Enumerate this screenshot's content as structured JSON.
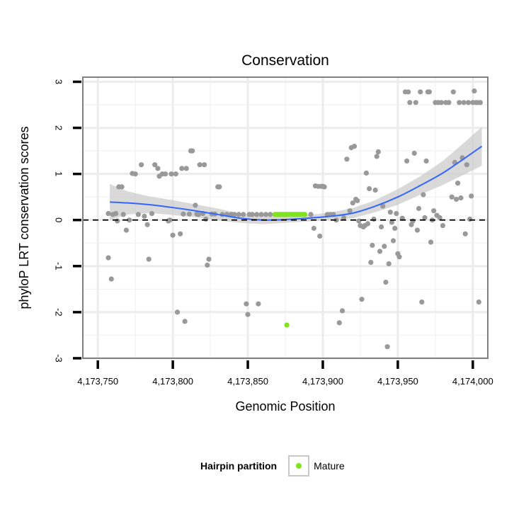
{
  "chart_data": {
    "type": "scatter",
    "title": "Conservation",
    "xlabel": "Genomic Position",
    "ylabel": "phyloP LRT conservation scores",
    "xlim": [
      4173740,
      4174010
    ],
    "ylim": [
      -3,
      3.1
    ],
    "x_ticks": [
      4173750,
      4173800,
      4173850,
      4173900,
      4173950,
      4174000
    ],
    "x_tick_labels": [
      "4,173,750",
      "4,173,800",
      "4,173,850",
      "4,173,900",
      "4,173,950",
      "4,174,000"
    ],
    "y_ticks": [
      -3,
      -2,
      -1,
      0,
      1,
      2,
      3
    ],
    "y_tick_labels": [
      "-3",
      "-2",
      "-1",
      "0",
      "1",
      "2",
      "3"
    ],
    "reference_line": {
      "y": 0,
      "style": "dashed"
    },
    "grid": true,
    "legend": {
      "title": "Hairpin partition",
      "position": "bottom",
      "entries": [
        {
          "label": "Mature",
          "color": "#7fe31e"
        }
      ]
    },
    "colors": {
      "point": "#999999",
      "mature": "#7fe31e",
      "smooth": "#3366ff",
      "band": "#cccccc",
      "panel_border": "#808080",
      "grid": "#ececec"
    },
    "smooth_curve": {
      "x": [
        4173758,
        4173770,
        4173785,
        4173800,
        4173815,
        4173830,
        4173845,
        4173860,
        4173875,
        4173890,
        4173905,
        4173920,
        4173935,
        4173950,
        4173965,
        4173980,
        4173995,
        4174006
      ],
      "y": [
        0.39,
        0.37,
        0.33,
        0.27,
        0.2,
        0.12,
        0.04,
        0.0,
        0.01,
        0.04,
        0.08,
        0.15,
        0.3,
        0.5,
        0.75,
        1.02,
        1.35,
        1.6
      ],
      "ci_upper": [
        0.78,
        0.62,
        0.51,
        0.43,
        0.34,
        0.25,
        0.14,
        0.09,
        0.08,
        0.11,
        0.16,
        0.26,
        0.43,
        0.67,
        0.95,
        1.28,
        1.7,
        2.02
      ],
      "ci_lower": [
        0.0,
        0.12,
        0.15,
        0.11,
        0.06,
        -0.01,
        -0.06,
        -0.09,
        -0.06,
        -0.03,
        0.0,
        0.04,
        0.17,
        0.33,
        0.55,
        0.76,
        1.0,
        1.18
      ]
    },
    "series": [
      {
        "name": "Other",
        "color": "#999999",
        "points": [
          [
            4173757,
            -0.82
          ],
          [
            4173759,
            -1.28
          ],
          [
            4173757,
            0.14
          ],
          [
            4173760,
            0.12
          ],
          [
            4173762,
            0.14
          ],
          [
            4173764,
            0.72
          ],
          [
            4173766,
            0.72
          ],
          [
            4173763,
            -0.02
          ],
          [
            4173767,
            0.12
          ],
          [
            4173769,
            -0.22
          ],
          [
            4173771,
            0.0
          ],
          [
            4173773,
            1.01
          ],
          [
            4173775,
            1.0
          ],
          [
            4173777,
            0.12
          ],
          [
            4173779,
            1.2
          ],
          [
            4173781,
            0.08
          ],
          [
            4173783,
            -0.1
          ],
          [
            4173784,
            -0.85
          ],
          [
            4173786,
            0.14
          ],
          [
            4173788,
            1.2
          ],
          [
            4173790,
            1.12
          ],
          [
            4173791,
            0.95
          ],
          [
            4173793,
            1.0
          ],
          [
            4173795,
            1.0
          ],
          [
            4173797,
            -0.02
          ],
          [
            4173798,
            0.0
          ],
          [
            4173799,
            1.0
          ],
          [
            4173800,
            -0.33
          ],
          [
            4173802,
            1.0
          ],
          [
            4173803,
            -2.0
          ],
          [
            4173805,
            -0.3
          ],
          [
            4173806,
            1.12
          ],
          [
            4173807,
            0.13
          ],
          [
            4173808,
            -2.2
          ],
          [
            4173809,
            1.12
          ],
          [
            4173811,
            0.13
          ],
          [
            4173812,
            1.5
          ],
          [
            4173813,
            1.5
          ],
          [
            4173815,
            0.32
          ],
          [
            4173816,
            0.13
          ],
          [
            4173817,
            0.12
          ],
          [
            4173818,
            1.2
          ],
          [
            4173820,
            0.14
          ],
          [
            4173821,
            1.2
          ],
          [
            4173822,
            0.02
          ],
          [
            4173823,
            -0.98
          ],
          [
            4173824,
            -0.85
          ],
          [
            4173826,
            0.13
          ],
          [
            4173828,
            0.13
          ],
          [
            4173830,
            0.72
          ],
          [
            4173831,
            0.72
          ],
          [
            4173833,
            0.12
          ],
          [
            4173836,
            0.12
          ],
          [
            4173839,
            0.12
          ],
          [
            4173841,
            0.12
          ],
          [
            4173844,
            0.12
          ],
          [
            4173847,
            0.12
          ],
          [
            4173849,
            -1.82
          ],
          [
            4173850,
            -2.05
          ],
          [
            4173851,
            0.12
          ],
          [
            4173853,
            0.12
          ],
          [
            4173856,
            0.12
          ],
          [
            4173857,
            -1.82
          ],
          [
            4173859,
            0.12
          ],
          [
            4173862,
            0.12
          ],
          [
            4173865,
            0.12
          ],
          [
            4173892,
            0.12
          ],
          [
            4173894,
            -0.18
          ],
          [
            4173895,
            0.74
          ],
          [
            4173897,
            0.73
          ],
          [
            4173898,
            -0.35
          ],
          [
            4173899,
            0.73
          ],
          [
            4173900,
            0.73
          ],
          [
            4173901,
            0.72
          ],
          [
            4173903,
            0.12
          ],
          [
            4173905,
            0.12
          ],
          [
            4173907,
            0.12
          ],
          [
            4173909,
            0.0
          ],
          [
            4173911,
            -2.23
          ],
          [
            4173913,
            -1.97
          ],
          [
            4173914,
            0.05
          ],
          [
            4173916,
            1.32
          ],
          [
            4173918,
            0.2
          ],
          [
            4173919,
            1.57
          ],
          [
            4173920,
            0.37
          ],
          [
            4173921,
            1.6
          ],
          [
            4173922,
            0.45
          ],
          [
            4173923,
            0.42
          ],
          [
            4173924,
            -0.02
          ],
          [
            4173925,
            -0.12
          ],
          [
            4173926,
            -1.72
          ],
          [
            4173927,
            -0.15
          ],
          [
            4173928,
            -0.12
          ],
          [
            4173929,
            1.02
          ],
          [
            4173930,
            -0.08
          ],
          [
            4173931,
            0.68
          ],
          [
            4173932,
            -0.92
          ],
          [
            4173933,
            -0.55
          ],
          [
            4173934,
            0.02
          ],
          [
            4173935,
            0.65
          ],
          [
            4173936,
            1.38
          ],
          [
            4173937,
            1.48
          ],
          [
            4173938,
            -0.68
          ],
          [
            4173939,
            -0.15
          ],
          [
            4173940,
            0.3
          ],
          [
            4173941,
            -0.57
          ],
          [
            4173942,
            -1.35
          ],
          [
            4173943,
            -2.75
          ],
          [
            4173944,
            -0.95
          ],
          [
            4173945,
            0.17
          ],
          [
            4173946,
            -0.05
          ],
          [
            4173947,
            -0.45
          ],
          [
            4173948,
            -0.18
          ],
          [
            4173949,
            0.14
          ],
          [
            4173950,
            -0.73
          ],
          [
            4173951,
            -0.8
          ],
          [
            4173953,
            0.04
          ],
          [
            4173955,
            2.78
          ],
          [
            4173956,
            1.28
          ],
          [
            4173957,
            2.78
          ],
          [
            4173958,
            2.55
          ],
          [
            4173959,
            -0.1
          ],
          [
            4173960,
            -0.02
          ],
          [
            4173961,
            1.45
          ],
          [
            4173962,
            2.55
          ],
          [
            4173963,
            -0.22
          ],
          [
            4173964,
            0.25
          ],
          [
            4173965,
            2.78
          ],
          [
            4173966,
            -1.78
          ],
          [
            4173967,
            0.55
          ],
          [
            4173968,
            0.05
          ],
          [
            4173969,
            1.28
          ],
          [
            4173970,
            2.78
          ],
          [
            4173971,
            2.78
          ],
          [
            4173972,
            -0.48
          ],
          [
            4173973,
            0.0
          ],
          [
            4173974,
            0.2
          ],
          [
            4173975,
            2.55
          ],
          [
            4173976,
            0.1
          ],
          [
            4173977,
            2.55
          ],
          [
            4173978,
            0.05
          ],
          [
            4173979,
            2.55
          ],
          [
            4173980,
            -0.12
          ],
          [
            4173982,
            2.55
          ],
          [
            4173984,
            2.55
          ],
          [
            4173986,
            0.5
          ],
          [
            4173987,
            2.78
          ],
          [
            4173988,
            1.25
          ],
          [
            4173989,
            0.45
          ],
          [
            4173990,
            0.8
          ],
          [
            4173991,
            2.55
          ],
          [
            4173992,
            0.48
          ],
          [
            4173993,
            1.35
          ],
          [
            4173994,
            2.55
          ],
          [
            4173995,
            -0.3
          ],
          [
            4173996,
            1.2
          ],
          [
            4173997,
            2.55
          ],
          [
            4173998,
            0.02
          ],
          [
            4173999,
            0.52
          ],
          [
            4174000,
            2.55
          ],
          [
            4174001,
            2.8
          ],
          [
            4174002,
            2.55
          ],
          [
            4174003,
            2.55
          ],
          [
            4174004,
            -1.78
          ],
          [
            4174005,
            2.55
          ]
        ]
      },
      {
        "name": "Mature",
        "color": "#7fe31e",
        "points": [
          [
            4173868,
            0.12
          ],
          [
            4173869,
            0.12
          ],
          [
            4173870,
            0.12
          ],
          [
            4173871,
            0.12
          ],
          [
            4173872,
            0.12
          ],
          [
            4173873,
            0.12
          ],
          [
            4173874,
            0.12
          ],
          [
            4173875,
            0.12
          ],
          [
            4173876,
            0.12
          ],
          [
            4173877,
            0.12
          ],
          [
            4173878,
            0.12
          ],
          [
            4173879,
            0.12
          ],
          [
            4173880,
            0.12
          ],
          [
            4173881,
            0.12
          ],
          [
            4173882,
            0.12
          ],
          [
            4173883,
            0.12
          ],
          [
            4173884,
            0.12
          ],
          [
            4173885,
            0.12
          ],
          [
            4173886,
            0.12
          ],
          [
            4173887,
            0.12
          ],
          [
            4173888,
            0.12
          ],
          [
            4173876,
            -2.28
          ]
        ]
      }
    ]
  }
}
